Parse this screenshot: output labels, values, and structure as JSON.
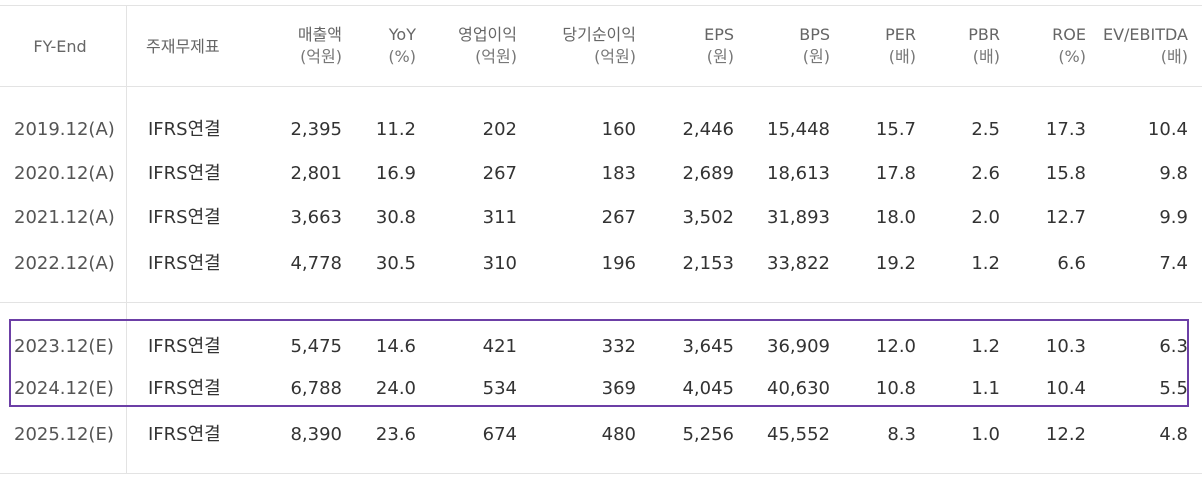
{
  "table": {
    "headers": {
      "fy_end": "FY-End",
      "basis": "주재무제표",
      "sales": {
        "label": "매출액",
        "unit": "(억원)"
      },
      "yoy": {
        "label": "YoY",
        "unit": "(%)"
      },
      "op_income": {
        "label": "영업이익",
        "unit": "(억원)"
      },
      "net_income": {
        "label": "당기순이익",
        "unit": "(억원)"
      },
      "eps": {
        "label": "EPS",
        "unit": "(원)"
      },
      "bps": {
        "label": "BPS",
        "unit": "(원)"
      },
      "per": {
        "label": "PER",
        "unit": "(배)"
      },
      "pbr": {
        "label": "PBR",
        "unit": "(배)"
      },
      "roe": {
        "label": "ROE",
        "unit": "(%)"
      },
      "ev_ebitda": {
        "label": "EV/EBITDA",
        "unit": "(배)"
      }
    },
    "rows": [
      {
        "fy": "2019.12(A)",
        "basis": "IFRS연결",
        "sales": "2,395",
        "yoy": "11.2",
        "op": "202",
        "net": "160",
        "eps": "2,446",
        "bps": "15,448",
        "per": "15.7",
        "pbr": "2.5",
        "roe": "17.3",
        "ev": "10.4"
      },
      {
        "fy": "2020.12(A)",
        "basis": "IFRS연결",
        "sales": "2,801",
        "yoy": "16.9",
        "op": "267",
        "net": "183",
        "eps": "2,689",
        "bps": "18,613",
        "per": "17.8",
        "pbr": "2.6",
        "roe": "15.8",
        "ev": "9.8"
      },
      {
        "fy": "2021.12(A)",
        "basis": "IFRS연결",
        "sales": "3,663",
        "yoy": "30.8",
        "op": "311",
        "net": "267",
        "eps": "3,502",
        "bps": "31,893",
        "per": "18.0",
        "pbr": "2.0",
        "roe": "12.7",
        "ev": "9.9"
      },
      {
        "fy": "2022.12(A)",
        "basis": "IFRS연결",
        "sales": "4,778",
        "yoy": "30.5",
        "op": "310",
        "net": "196",
        "eps": "2,153",
        "bps": "33,822",
        "per": "19.2",
        "pbr": "1.2",
        "roe": "6.6",
        "ev": "7.4"
      },
      {
        "fy": "2023.12(E)",
        "basis": "IFRS연결",
        "sales": "5,475",
        "yoy": "14.6",
        "op": "421",
        "net": "332",
        "eps": "3,645",
        "bps": "36,909",
        "per": "12.0",
        "pbr": "1.2",
        "roe": "10.3",
        "ev": "6.3"
      },
      {
        "fy": "2024.12(E)",
        "basis": "IFRS연결",
        "sales": "6,788",
        "yoy": "24.0",
        "op": "534",
        "net": "369",
        "eps": "4,045",
        "bps": "40,630",
        "per": "10.8",
        "pbr": "1.1",
        "roe": "10.4",
        "ev": "5.5"
      },
      {
        "fy": "2025.12(E)",
        "basis": "IFRS연결",
        "sales": "8,390",
        "yoy": "23.6",
        "op": "674",
        "net": "480",
        "eps": "5,256",
        "bps": "45,552",
        "per": "8.3",
        "pbr": "1.0",
        "roe": "12.2",
        "ev": "4.8"
      }
    ],
    "highlight_color": "#6c3fa6"
  }
}
